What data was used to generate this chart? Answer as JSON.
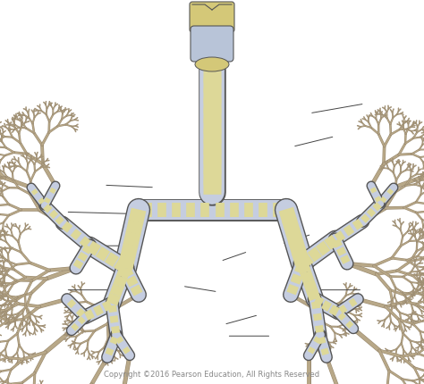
{
  "bg_color": "#ffffff",
  "copyright_text": "Copyright ©2016 Pearson Education, All Rights Reserved",
  "copyright_color": "#888888",
  "copyright_fontsize": 6,
  "trachea_color": "#c5cde0",
  "ring_color": "#ddd898",
  "branch_color": "#b8a888",
  "branch_edge_color": "#9a8a70",
  "larynx_gold": "#d4c878",
  "larynx_blue": "#b8c4d8",
  "line_color": "#555555",
  "label_line_color": "#444444",
  "label_lines": [
    [
      0.535,
      0.875,
      0.64,
      0.875
    ],
    [
      0.528,
      0.845,
      0.61,
      0.82
    ],
    [
      0.514,
      0.76,
      0.43,
      0.745
    ],
    [
      0.52,
      0.68,
      0.585,
      0.655
    ],
    [
      0.295,
      0.755,
      0.155,
      0.755
    ],
    [
      0.34,
      0.64,
      0.185,
      0.64
    ],
    [
      0.355,
      0.558,
      0.155,
      0.552
    ],
    [
      0.365,
      0.488,
      0.245,
      0.482
    ],
    [
      0.72,
      0.755,
      0.855,
      0.755
    ],
    [
      0.665,
      0.635,
      0.735,
      0.61
    ],
    [
      0.69,
      0.382,
      0.79,
      0.355
    ],
    [
      0.73,
      0.295,
      0.86,
      0.27
    ]
  ]
}
